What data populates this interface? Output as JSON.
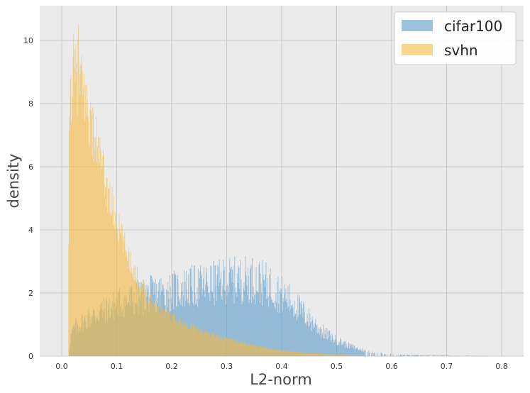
{
  "chart_data": {
    "type": "histogram",
    "title": "",
    "xlabel": "L2-norm",
    "ylabel": "density",
    "xlim": [
      -0.04,
      0.84
    ],
    "ylim": [
      0,
      11.1
    ],
    "xticks": [
      "0.0",
      "0.1",
      "0.2",
      "0.3",
      "0.4",
      "0.5",
      "0.6",
      "0.7",
      "0.8"
    ],
    "yticks": [
      "0",
      "2",
      "4",
      "6",
      "8",
      "10"
    ],
    "grid": true,
    "legend_position": "top-right",
    "bin_width": 0.001,
    "colors": {
      "cifar100": "#5b9bc9",
      "svhn": "#f6b940",
      "plot_bg": "#ebebeb",
      "grid": "#c8c8c8"
    },
    "series": [
      {
        "name": "cifar100",
        "color": "#5b9bc9",
        "x_range": [
          0.013,
          0.775
        ],
        "envelope": [
          [
            0.013,
            0.1
          ],
          [
            0.016,
            0.6
          ],
          [
            0.02,
            0.8
          ],
          [
            0.03,
            1.0
          ],
          [
            0.05,
            1.2
          ],
          [
            0.07,
            1.4
          ],
          [
            0.09,
            1.55
          ],
          [
            0.1,
            1.65
          ],
          [
            0.12,
            1.75
          ],
          [
            0.14,
            1.85
          ],
          [
            0.16,
            1.95
          ],
          [
            0.18,
            2.0
          ],
          [
            0.2,
            2.05
          ],
          [
            0.22,
            2.15
          ],
          [
            0.24,
            2.2
          ],
          [
            0.26,
            2.25
          ],
          [
            0.28,
            2.3
          ],
          [
            0.3,
            2.4
          ],
          [
            0.32,
            2.4
          ],
          [
            0.34,
            2.45
          ],
          [
            0.36,
            2.35
          ],
          [
            0.38,
            2.2
          ],
          [
            0.4,
            1.95
          ],
          [
            0.42,
            1.7
          ],
          [
            0.44,
            1.35
          ],
          [
            0.46,
            1.0
          ],
          [
            0.48,
            0.7
          ],
          [
            0.5,
            0.5
          ],
          [
            0.52,
            0.35
          ],
          [
            0.54,
            0.22
          ],
          [
            0.56,
            0.14
          ],
          [
            0.58,
            0.09
          ],
          [
            0.6,
            0.06
          ],
          [
            0.62,
            0.04
          ],
          [
            0.65,
            0.025
          ],
          [
            0.7,
            0.015
          ],
          [
            0.75,
            0.01
          ],
          [
            0.775,
            0.01
          ]
        ]
      },
      {
        "name": "svhn",
        "color": "#f6b940",
        "x_range": [
          0.012,
          0.6
        ],
        "envelope": [
          [
            0.012,
            0.3
          ],
          [
            0.013,
            6.2
          ],
          [
            0.015,
            8.2
          ],
          [
            0.02,
            9.0
          ],
          [
            0.025,
            8.8
          ],
          [
            0.03,
            8.9
          ],
          [
            0.035,
            8.6
          ],
          [
            0.04,
            8.3
          ],
          [
            0.05,
            7.6
          ],
          [
            0.06,
            6.9
          ],
          [
            0.07,
            6.2
          ],
          [
            0.08,
            5.4
          ],
          [
            0.09,
            4.8
          ],
          [
            0.1,
            4.2
          ],
          [
            0.11,
            3.7
          ],
          [
            0.12,
            3.2
          ],
          [
            0.13,
            2.8
          ],
          [
            0.14,
            2.4
          ],
          [
            0.15,
            2.1
          ],
          [
            0.16,
            1.85
          ],
          [
            0.18,
            1.5
          ],
          [
            0.2,
            1.25
          ],
          [
            0.22,
            1.05
          ],
          [
            0.25,
            0.8
          ],
          [
            0.3,
            0.55
          ],
          [
            0.35,
            0.33
          ],
          [
            0.4,
            0.18
          ],
          [
            0.45,
            0.1
          ],
          [
            0.5,
            0.05
          ],
          [
            0.55,
            0.02
          ],
          [
            0.6,
            0.005
          ]
        ],
        "peak": {
          "x": 0.03,
          "y": 10.5
        }
      }
    ]
  }
}
